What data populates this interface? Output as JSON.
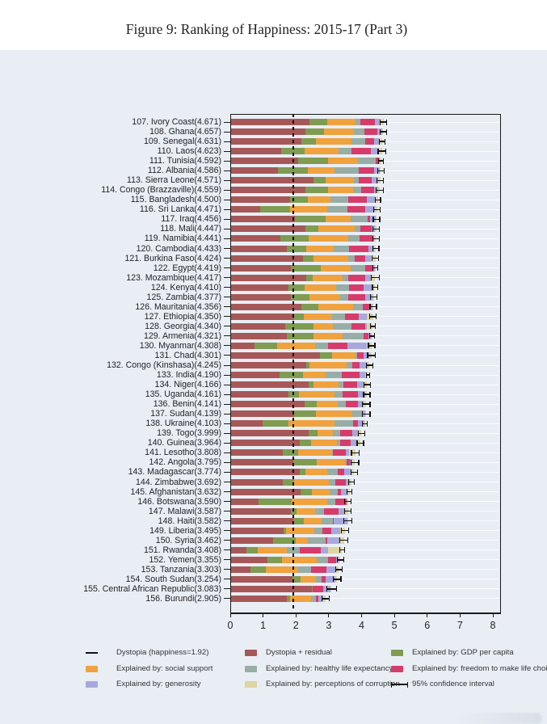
{
  "title": "Figure 9: Ranking of Happiness: 2015-17 (Part 3)",
  "chart_data": {
    "type": "bar",
    "orientation": "horizontal",
    "stacked": true,
    "title": "Figure 9: Ranking of Happiness: 2015-17 (Part 3)",
    "xlabel": "",
    "ylabel": "",
    "xlim": [
      0,
      8
    ],
    "x_ticks": [
      "0",
      "1",
      "2",
      "3",
      "4",
      "5",
      "6",
      "7",
      "8"
    ],
    "grid": true,
    "dystopia_reference_line": 1.92,
    "panel_background": "#e9eef5",
    "segment_keys": [
      "dystopia_residual",
      "gdp_per_capita",
      "social_support",
      "healthy_life_expectancy",
      "freedom",
      "generosity",
      "corruption"
    ],
    "segment_colors": {
      "dystopia_residual": "#a65858",
      "gdp_per_capita": "#7f9c52",
      "social_support": "#efa23e",
      "healthy_life_expectancy": "#97ada6",
      "freedom": "#d63c6b",
      "generosity": "#a8a8dc",
      "corruption": "#ddd4a2",
      "axis": "#1a1a1a"
    },
    "columns": [
      "rank",
      "country",
      "score",
      "dystopia_residual",
      "gdp_per_capita",
      "social_support",
      "healthy_life_expectancy",
      "freedom",
      "generosity",
      "corruption",
      "ci_half_width"
    ],
    "countries": [
      [
        107,
        "Ivory Coast",
        4.671,
        2.411,
        0.54,
        0.87,
        0.13,
        0.45,
        0.15,
        0.12,
        0.1
      ],
      [
        108,
        "Ghana",
        4.657,
        2.277,
        0.59,
        0.9,
        0.31,
        0.41,
        0.13,
        0.04,
        0.1
      ],
      [
        109,
        "Senegal",
        4.631,
        2.171,
        0.43,
        1.1,
        0.41,
        0.27,
        0.15,
        0.1,
        0.09
      ],
      [
        110,
        "Laos",
        4.623,
        1.553,
        0.72,
        1.03,
        0.4,
        0.59,
        0.22,
        0.11,
        0.12
      ],
      [
        111,
        "Tunisia",
        4.592,
        2.062,
        0.92,
        0.9,
        0.55,
        0.1,
        0.03,
        0.03,
        0.08
      ],
      [
        112,
        "Albania",
        4.586,
        1.446,
        0.92,
        0.82,
        0.73,
        0.46,
        0.18,
        0.03,
        0.1
      ],
      [
        113,
        "Sierra Leone",
        4.571,
        2.531,
        0.37,
        0.87,
        0.15,
        0.39,
        0.19,
        0.07,
        0.1
      ],
      [
        114,
        "Congo (Brazzaville)",
        4.559,
        2.289,
        0.68,
        0.77,
        0.26,
        0.38,
        0.12,
        0.06,
        0.11
      ],
      [
        115,
        "Bangladesh",
        4.5,
        1.83,
        0.53,
        0.68,
        0.55,
        0.57,
        0.24,
        0.1,
        0.08
      ],
      [
        116,
        "Sri Lanka",
        4.471,
        0.911,
        0.92,
        1.12,
        0.61,
        0.56,
        0.29,
        0.06,
        0.1
      ],
      [
        117,
        "Iraq",
        4.456,
        1.966,
        0.94,
        0.75,
        0.52,
        0.09,
        0.17,
        0.02,
        0.1
      ],
      [
        118,
        "Mali",
        4.447,
        2.287,
        0.39,
        1.11,
        0.17,
        0.34,
        0.1,
        0.05,
        0.1
      ],
      [
        119,
        "Namibia",
        4.441,
        1.521,
        0.87,
        1.2,
        0.35,
        0.38,
        0.06,
        0.06,
        0.1
      ],
      [
        120,
        "Cambodia",
        4.433,
        1.713,
        0.6,
        0.83,
        0.47,
        0.59,
        0.18,
        0.05,
        0.1
      ],
      [
        121,
        "Burkina Faso",
        4.424,
        2.214,
        0.31,
        1.06,
        0.21,
        0.32,
        0.18,
        0.13,
        0.1
      ],
      [
        122,
        "Egypt",
        4.419,
        1.839,
        0.92,
        0.9,
        0.46,
        0.24,
        0.05,
        0.01,
        0.08
      ],
      [
        123,
        "Mozambique",
        4.417,
        2.317,
        0.2,
        0.9,
        0.17,
        0.53,
        0.19,
        0.11,
        0.12
      ],
      [
        124,
        "Kenya",
        4.41,
        1.77,
        0.49,
        0.97,
        0.4,
        0.43,
        0.29,
        0.06,
        0.08
      ],
      [
        125,
        "Zambia",
        4.377,
        1.847,
        0.56,
        0.95,
        0.23,
        0.52,
        0.22,
        0.05,
        0.1
      ],
      [
        126,
        "Mauritania",
        4.356,
        2.156,
        0.53,
        1.06,
        0.29,
        0.19,
        0.1,
        0.03,
        0.1
      ],
      [
        127,
        "Ethiopia",
        4.35,
        1.94,
        0.31,
        0.86,
        0.39,
        0.41,
        0.25,
        0.19,
        0.1
      ],
      [
        128,
        "Georgia",
        4.34,
        1.68,
        0.85,
        0.59,
        0.57,
        0.42,
        0.06,
        0.17,
        0.08
      ],
      [
        129,
        "Armenia",
        4.321,
        1.711,
        0.82,
        0.9,
        0.64,
        0.14,
        0.08,
        0.03,
        0.08
      ],
      [
        130,
        "Myanmar",
        4.308,
        0.738,
        0.68,
        1.17,
        0.4,
        0.58,
        0.6,
        0.14,
        0.1
      ],
      [
        131,
        "Chad",
        4.301,
        2.731,
        0.36,
        0.73,
        0.05,
        0.19,
        0.18,
        0.06,
        0.12
      ],
      [
        132,
        "Congo (Kinshasa)",
        4.245,
        2.315,
        0.09,
        1.13,
        0.19,
        0.22,
        0.25,
        0.05,
        0.1
      ],
      [
        133,
        "India",
        4.19,
        1.5,
        0.72,
        0.68,
        0.49,
        0.54,
        0.17,
        0.09,
        0.05
      ],
      [
        134,
        "Niger",
        4.166,
        2.386,
        0.14,
        0.77,
        0.15,
        0.43,
        0.19,
        0.1,
        0.1
      ],
      [
        135,
        "Uganda",
        4.161,
        1.771,
        0.32,
        1.09,
        0.24,
        0.46,
        0.22,
        0.06,
        0.1
      ],
      [
        136,
        "Benin",
        4.141,
        2.261,
        0.38,
        0.64,
        0.25,
        0.37,
        0.16,
        0.08,
        0.12
      ],
      [
        137,
        "Sudan",
        4.139,
        1.949,
        0.66,
        1.1,
        0.31,
        0.02,
        0.07,
        0.03,
        0.12
      ],
      [
        138,
        "Ukraine",
        4.103,
        0.983,
        0.79,
        1.41,
        0.55,
        0.15,
        0.21,
        0.01,
        0.08
      ],
      [
        139,
        "Togo",
        3.999,
        2.399,
        0.26,
        0.47,
        0.22,
        0.38,
        0.18,
        0.09,
        0.1
      ],
      [
        140,
        "Guinea",
        3.964,
        2.114,
        0.34,
        0.79,
        0.11,
        0.31,
        0.19,
        0.11,
        0.1
      ],
      [
        141,
        "Lesotho",
        3.808,
        1.588,
        0.47,
        1.05,
        0.01,
        0.39,
        0.12,
        0.18,
        0.12
      ],
      [
        142,
        "Angola",
        3.795,
        1.915,
        0.73,
        0.84,
        0.05,
        0.1,
        0.08,
        0.08,
        0.12
      ],
      [
        143,
        "Madagascar",
        3.774,
        2.114,
        0.18,
        0.67,
        0.31,
        0.2,
        0.19,
        0.11,
        0.1
      ],
      [
        144,
        "Zimbabwe",
        3.692,
        1.592,
        0.36,
        1.04,
        0.2,
        0.34,
        0.1,
        0.06,
        0.08
      ],
      [
        145,
        "Afghanistan",
        3.632,
        2.152,
        0.33,
        0.54,
        0.26,
        0.09,
        0.19,
        0.07,
        0.08
      ],
      [
        146,
        "Botswana",
        3.59,
        0.85,
        1.02,
        1.08,
        0.24,
        0.36,
        0.0,
        0.04,
        0.1
      ],
      [
        147,
        "Malawi",
        3.587,
        1.837,
        0.19,
        0.56,
        0.27,
        0.43,
        0.21,
        0.09,
        0.1
      ],
      [
        148,
        "Haiti",
        3.582,
        1.912,
        0.32,
        0.56,
        0.33,
        0.03,
        0.42,
        0.01,
        0.12
      ],
      [
        149,
        "Liberia",
        3.495,
        1.615,
        0.08,
        0.86,
        0.25,
        0.27,
        0.28,
        0.14,
        0.12
      ],
      [
        150,
        "Syria",
        3.462,
        1.302,
        0.69,
        0.38,
        0.54,
        0.03,
        0.38,
        0.14,
        0.12
      ],
      [
        151,
        "Rwanda",
        3.408,
        0.498,
        0.33,
        0.9,
        0.4,
        0.64,
        0.2,
        0.44,
        0.08
      ],
      [
        152,
        "Yemen",
        3.355,
        1.125,
        0.44,
        1.07,
        0.34,
        0.24,
        0.08,
        0.06,
        0.1
      ],
      [
        153,
        "Tanzania",
        3.303,
        0.623,
        0.46,
        0.99,
        0.38,
        0.48,
        0.27,
        0.1,
        0.1
      ],
      [
        154,
        "South Sudan",
        3.254,
        1.904,
        0.24,
        0.46,
        0.18,
        0.13,
        0.28,
        0.06,
        0.12
      ],
      [
        155,
        "Central African Republic",
        3.083,
        2.483,
        0.02,
        0.0,
        0.01,
        0.31,
        0.22,
        0.04,
        0.15
      ],
      [
        156,
        "Burundi",
        2.905,
        1.735,
        0.09,
        0.63,
        0.15,
        0.07,
        0.15,
        0.08,
        0.12
      ]
    ],
    "legend_position": "bottom",
    "legend": [
      [
        {
          "marker": "line",
          "label": "Dystopia (happiness=1.92)"
        },
        {
          "marker": "swatch",
          "key": "social_support",
          "label": "Explained by: social support"
        },
        {
          "marker": "swatch",
          "key": "generosity",
          "label": "Explained by: generosity"
        }
      ],
      [
        {
          "marker": "swatch",
          "key": "dystopia_residual",
          "label": "Dystopia + residual"
        },
        {
          "marker": "swatch",
          "key": "healthy_life_expectancy",
          "label": "Explained by: healthy life expectancy"
        },
        {
          "marker": "swatch",
          "key": "corruption",
          "label": "Explained by: perceptions of corruption"
        }
      ],
      [
        {
          "marker": "swatch",
          "key": "gdp_per_capita",
          "label": "Explained by: GDP per capita"
        },
        {
          "marker": "swatch",
          "key": "freedom",
          "label": "Explained by: freedom to make life choices"
        },
        {
          "marker": "errorbar",
          "label": "95% confidence interval"
        }
      ]
    ]
  }
}
